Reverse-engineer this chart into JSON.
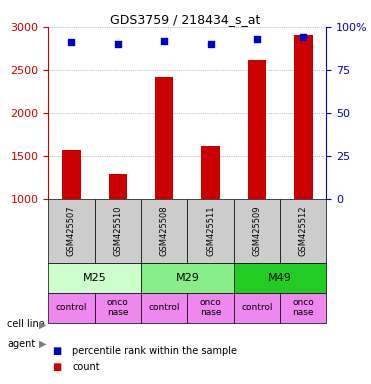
{
  "title": "GDS3759 / 218434_s_at",
  "samples": [
    "GSM425507",
    "GSM425510",
    "GSM425508",
    "GSM425511",
    "GSM425509",
    "GSM425512"
  ],
  "counts": [
    1570,
    1290,
    2420,
    1620,
    2620,
    2900
  ],
  "percentile_ranks": [
    91,
    90,
    92,
    90,
    93,
    94
  ],
  "ylim_left": [
    1000,
    3000
  ],
  "ylim_right": [
    0,
    100
  ],
  "yticks_left": [
    1000,
    1500,
    2000,
    2500,
    3000
  ],
  "yticks_right": [
    0,
    25,
    50,
    75,
    100
  ],
  "bar_color": "#cc0000",
  "dot_color": "#0000cc",
  "cell_lines": [
    {
      "label": "M25",
      "span": [
        0,
        2
      ],
      "color": "#ccffcc"
    },
    {
      "label": "M29",
      "span": [
        2,
        4
      ],
      "color": "#88ee88"
    },
    {
      "label": "M49",
      "span": [
        4,
        6
      ],
      "color": "#22cc22"
    }
  ],
  "agents": [
    {
      "label": "control",
      "span": [
        0,
        1
      ],
      "color": "#ee88ee"
    },
    {
      "label": "onconase",
      "span": [
        1,
        2
      ],
      "color": "#ee88ee"
    },
    {
      "label": "control",
      "span": [
        2,
        3
      ],
      "color": "#ee88ee"
    },
    {
      "label": "onconase",
      "span": [
        3,
        4
      ],
      "color": "#ee88ee"
    },
    {
      "label": "control",
      "span": [
        4,
        5
      ],
      "color": "#ee88ee"
    },
    {
      "label": "onconase",
      "span": [
        5,
        6
      ],
      "color": "#ee88ee"
    }
  ],
  "cell_line_colors": [
    "#ccffcc",
    "#88ee88",
    "#22cc22"
  ],
  "agent_color": "#ee88ee",
  "label_color_left": "#cc0000",
  "label_color_right": "#0000cc",
  "grid_color": "#888888",
  "sample_bg_color": "#cccccc",
  "legend_items": [
    {
      "color": "#cc0000",
      "label": "count"
    },
    {
      "color": "#0000cc",
      "label": "percentile rank within the sample"
    }
  ]
}
